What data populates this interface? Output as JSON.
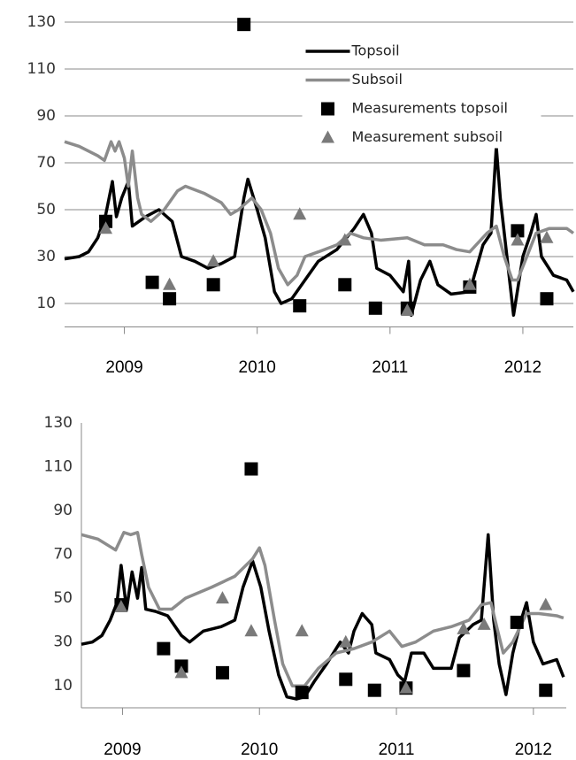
{
  "chart_data": [
    {
      "type": "line",
      "legend": "upper center",
      "xlim": [
        2008.55,
        2012.38
      ],
      "xticks": [
        2009,
        2010,
        2011,
        2012
      ],
      "ylim": [
        0,
        130
      ],
      "yticks": [
        10,
        30,
        50,
        70,
        90,
        110,
        130
      ],
      "grid": true,
      "series": [
        {
          "name": "Topsoil",
          "type": "line",
          "color": "#000000",
          "x": [
            2008.55,
            2008.66,
            2008.73,
            2008.8,
            2008.86,
            2008.91,
            2008.94,
            2008.98,
            2009.03,
            2009.06,
            2009.16,
            2009.26,
            2009.36,
            2009.43,
            2009.53,
            2009.63,
            2009.73,
            2009.83,
            2009.9,
            2009.93,
            2010.0,
            2010.06,
            2010.13,
            2010.18,
            2010.26,
            2010.36,
            2010.46,
            2010.6,
            2010.73,
            2010.8,
            2010.86,
            2010.9,
            2011.0,
            2011.1,
            2011.14,
            2011.16,
            2011.23,
            2011.3,
            2011.36,
            2011.46,
            2011.6,
            2011.7,
            2011.76,
            2011.8,
            2011.83,
            2011.9,
            2011.93,
            2012.0,
            2012.06,
            2012.1,
            2012.14,
            2012.23,
            2012.33,
            2012.38
          ],
          "values": [
            29,
            30,
            32,
            38,
            48,
            62,
            47,
            55,
            62,
            43,
            47,
            50,
            45,
            30,
            28,
            25,
            27,
            30,
            55,
            63,
            50,
            38,
            15,
            10,
            12,
            20,
            28,
            33,
            42,
            48,
            40,
            25,
            22,
            15,
            28,
            5,
            20,
            28,
            18,
            14,
            15,
            35,
            40,
            77,
            55,
            20,
            5,
            30,
            40,
            48,
            30,
            22,
            20,
            15
          ]
        },
        {
          "name": "Subsoil",
          "type": "line",
          "color": "#8c8c8c",
          "x": [
            2008.55,
            2008.66,
            2008.8,
            2008.85,
            2008.9,
            2008.93,
            2008.96,
            2009.0,
            2009.03,
            2009.06,
            2009.1,
            2009.13,
            2009.2,
            2009.3,
            2009.4,
            2009.46,
            2009.6,
            2009.73,
            2009.8,
            2009.86,
            2009.96,
            2010.03,
            2010.1,
            2010.16,
            2010.23,
            2010.3,
            2010.36,
            2010.46,
            2010.6,
            2010.7,
            2010.8,
            2010.93,
            2011.13,
            2011.26,
            2011.4,
            2011.5,
            2011.6,
            2011.73,
            2011.8,
            2011.86,
            2011.92,
            2011.96,
            2012.03,
            2012.1,
            2012.2,
            2012.33,
            2012.38
          ],
          "values": [
            79,
            77,
            73,
            71,
            79,
            75,
            79,
            72,
            60,
            75,
            55,
            48,
            45,
            50,
            58,
            60,
            57,
            53,
            48,
            50,
            55,
            50,
            40,
            25,
            18,
            22,
            30,
            32,
            35,
            40,
            38,
            37,
            38,
            35,
            35,
            33,
            32,
            40,
            43,
            30,
            20,
            20,
            30,
            40,
            42,
            42,
            40
          ]
        },
        {
          "name": "Measurements topsoil",
          "type": "scatter",
          "marker": "square",
          "color": "#000000",
          "x": [
            2008.86,
            2009.21,
            2009.34,
            2009.67,
            2009.9,
            2010.32,
            2010.66,
            2010.89,
            2011.13,
            2011.6,
            2011.96,
            2012.18
          ],
          "values": [
            45,
            19,
            12,
            18,
            129,
            9,
            18,
            8,
            8,
            17,
            41,
            12
          ]
        },
        {
          "name": "Measurement subsoil",
          "type": "scatter",
          "marker": "triangle",
          "color": "#7a7a7a",
          "x": [
            2008.86,
            2009.34,
            2009.67,
            2010.32,
            2010.66,
            2011.13,
            2011.6,
            2011.96,
            2012.18
          ],
          "values": [
            42,
            18,
            28,
            48,
            37,
            7,
            18,
            37,
            38
          ]
        }
      ]
    },
    {
      "type": "line",
      "xlim": [
        2008.7,
        2012.24
      ],
      "xticks": [
        2009,
        2010,
        2011,
        2012
      ],
      "ylim": [
        0,
        130
      ],
      "yticks": [
        10,
        30,
        50,
        70,
        90,
        110,
        130
      ],
      "grid": false,
      "series": [
        {
          "type": "line",
          "color": "#000000",
          "x": [
            2008.7,
            2008.78,
            2008.85,
            2008.91,
            2008.96,
            2008.99,
            2009.03,
            2009.07,
            2009.11,
            2009.14,
            2009.17,
            2009.24,
            2009.33,
            2009.43,
            2009.49,
            2009.59,
            2009.72,
            2009.82,
            2009.88,
            2009.95,
            2010.01,
            2010.07,
            2010.14,
            2010.2,
            2010.27,
            2010.33,
            2010.4,
            2010.49,
            2010.59,
            2010.65,
            2010.69,
            2010.75,
            2010.82,
            2010.85,
            2010.95,
            2011.01,
            2011.06,
            2011.11,
            2011.2,
            2011.27,
            2011.4,
            2011.46,
            2011.56,
            2011.62,
            2011.67,
            2011.71,
            2011.75,
            2011.8,
            2011.85,
            2011.91,
            2011.95,
            2012.0,
            2012.07,
            2012.17,
            2012.22
          ],
          "values": [
            29,
            30,
            33,
            40,
            48,
            65,
            45,
            62,
            50,
            64,
            45,
            44,
            42,
            33,
            30,
            35,
            37,
            40,
            55,
            67,
            55,
            35,
            15,
            5,
            4,
            5,
            12,
            20,
            30,
            25,
            35,
            43,
            38,
            25,
            22,
            15,
            12,
            25,
            25,
            18,
            18,
            32,
            38,
            40,
            79,
            40,
            20,
            6,
            25,
            40,
            48,
            30,
            20,
            22,
            14
          ]
        },
        {
          "type": "line",
          "color": "#8c8c8c",
          "x": [
            2008.7,
            2008.82,
            2008.95,
            2009.01,
            2009.06,
            2009.11,
            2009.14,
            2009.19,
            2009.27,
            2009.36,
            2009.46,
            2009.65,
            2009.82,
            2009.95,
            2010.0,
            2010.04,
            2010.11,
            2010.17,
            2010.24,
            2010.33,
            2010.43,
            2010.56,
            2010.69,
            2010.82,
            2010.95,
            2011.04,
            2011.14,
            2011.27,
            2011.4,
            2011.53,
            2011.62,
            2011.69,
            2011.74,
            2011.78,
            2011.85,
            2011.95,
            2012.04,
            2012.17,
            2012.22
          ],
          "values": [
            79,
            77,
            72,
            80,
            79,
            80,
            70,
            55,
            45,
            45,
            50,
            55,
            60,
            68,
            73,
            65,
            40,
            20,
            10,
            10,
            18,
            25,
            27,
            30,
            35,
            28,
            30,
            35,
            37,
            40,
            47,
            48,
            35,
            25,
            30,
            43,
            43,
            42,
            41
          ]
        },
        {
          "type": "scatter",
          "marker": "square",
          "color": "#000000",
          "x": [
            2008.99,
            2009.3,
            2009.43,
            2009.73,
            2009.94,
            2010.31,
            2010.63,
            2010.84,
            2011.07,
            2011.49,
            2011.88,
            2012.09
          ],
          "values": [
            47,
            27,
            19,
            16,
            109,
            7,
            13,
            8,
            9,
            17,
            39,
            8
          ]
        },
        {
          "type": "scatter",
          "marker": "triangle",
          "color": "#7a7a7a",
          "x": [
            2008.99,
            2009.43,
            2009.73,
            2009.94,
            2010.31,
            2010.63,
            2011.07,
            2011.49,
            2011.64,
            2012.09
          ],
          "values": [
            46,
            16,
            50,
            35,
            35,
            30,
            9,
            36,
            38,
            47
          ]
        }
      ]
    }
  ]
}
